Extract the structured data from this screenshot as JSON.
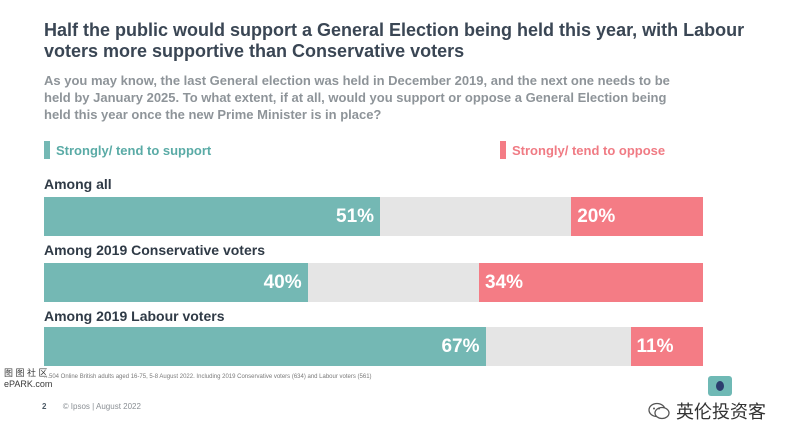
{
  "title": "Half the public would support a General Election being held this year, with Labour voters more supportive than Conservative voters",
  "subtitle": "As you may know, the last General election was held in December 2019, and the next one needs to be held by January 2025. To what extent, if at all, would you support or oppose a General Election being held this year once the new Prime Minister is in place?",
  "legend": {
    "support": "Strongly/ tend to support",
    "oppose": "Strongly/ tend to oppose"
  },
  "colors": {
    "support": "#74b8b4",
    "oppose": "#f47c85",
    "neutral": "#e5e5e5"
  },
  "chart_data": {
    "type": "bar",
    "orientation": "horizontal-stacked",
    "categories": [
      "Among all",
      "Among 2019 Conservative voters",
      "Among 2019 Labour voters"
    ],
    "series": [
      {
        "name": "Strongly/ tend to support",
        "values": [
          51,
          40,
          67
        ]
      },
      {
        "name": "Strongly/ tend to oppose",
        "values": [
          20,
          34,
          11
        ]
      }
    ],
    "data_labels": {
      "support": [
        "51%",
        "40%",
        "67%"
      ],
      "oppose": [
        "20%",
        "34%",
        "11%"
      ]
    },
    "xlim": [
      0,
      100
    ]
  },
  "footnote": "...504 Online British adults aged 16-75, 5-8 August 2022. Including 2019 Conservative voters (634) and Labour voters (561)",
  "footer": {
    "page": "2",
    "copyright": "© Ipsos | August 2022"
  },
  "watermark": {
    "left_line1": "图 图 社 区",
    "left_line2": "ePARK.com",
    "right": "英伦投资客"
  }
}
